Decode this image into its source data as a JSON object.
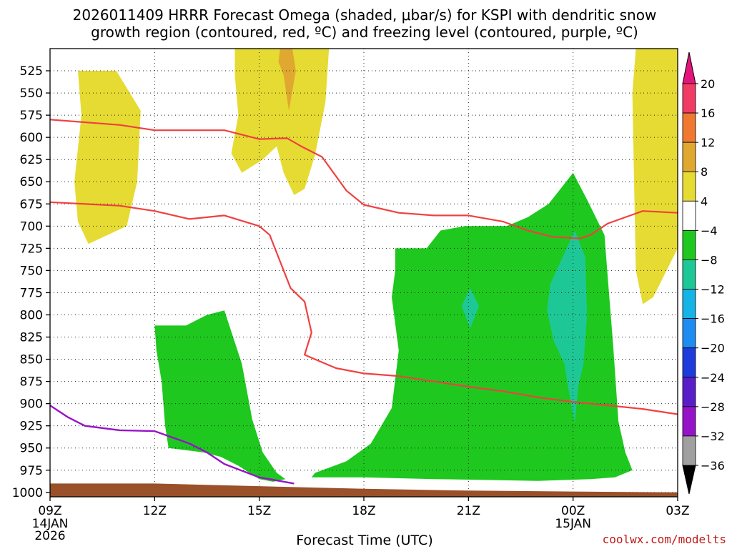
{
  "chart_data": {
    "type": "time-height cross section",
    "title_line1": "2026011409 HRRR Forecast Omega (shaded, μbar/s) for KSPI with dendritic snow",
    "title_line2": "growth region (contoured, red, ºC) and freezing level (contoured, purple, ºC)",
    "xlabel": "Forecast Time (UTC)",
    "credit": "coolwx.com/modelts",
    "x_range_hours": [
      0,
      18
    ],
    "y_range_mb": [
      1005,
      500
    ],
    "y_ticks": [
      525,
      550,
      575,
      600,
      625,
      650,
      675,
      700,
      725,
      750,
      775,
      800,
      825,
      850,
      875,
      900,
      925,
      950,
      975,
      1000
    ],
    "y_tick_labels": [
      "525",
      "550",
      "575",
      "600",
      "625",
      "650",
      "675",
      "700",
      "725",
      "750",
      "775",
      "800",
      "825",
      "850",
      "875",
      "900",
      "925",
      "950",
      "975",
      "1000"
    ],
    "x_ticks": [
      {
        "hour": 0,
        "label": "09Z",
        "sub": [
          "14JAN",
          "2026"
        ]
      },
      {
        "hour": 3,
        "label": "12Z",
        "sub": []
      },
      {
        "hour": 6,
        "label": "15Z",
        "sub": []
      },
      {
        "hour": 9,
        "label": "18Z",
        "sub": []
      },
      {
        "hour": 12,
        "label": "21Z",
        "sub": []
      },
      {
        "hour": 15,
        "label": "00Z",
        "sub": [
          "15JAN"
        ]
      },
      {
        "hour": 18,
        "label": "03Z",
        "sub": []
      }
    ],
    "colorbar": {
      "labels": [
        "20",
        "16",
        "12",
        "8",
        "4",
        "−4",
        "−8",
        "−12",
        "−16",
        "−20",
        "−24",
        "−28",
        "−32",
        "−36"
      ],
      "colors": [
        "#f03c64",
        "#f07830",
        "#e0a830",
        "#e6db32",
        "#ffffff",
        "#1ec81e",
        "#1ec896",
        "#14b4e6",
        "#1e8cf0",
        "#1e3cdc",
        "#5a1ec8",
        "#9614c8",
        "#a0a0a0"
      ],
      "top_arrow_color": "#e6147a",
      "bottom_arrow_color": "#000000"
    },
    "omega_regions": [
      {
        "name": "yellow-left",
        "color": "#e6db32",
        "points": [
          [
            0.8,
            525
          ],
          [
            1.9,
            525
          ],
          [
            2.6,
            570
          ],
          [
            2.5,
            650
          ],
          [
            2.2,
            700
          ],
          [
            1.1,
            720
          ],
          [
            0.8,
            695
          ],
          [
            0.7,
            650
          ],
          [
            0.9,
            575
          ]
        ]
      },
      {
        "name": "yellow-mid",
        "color": "#e6db32",
        "points": [
          [
            5.3,
            500
          ],
          [
            8.0,
            500
          ],
          [
            7.9,
            560
          ],
          [
            7.6,
            620
          ],
          [
            7.3,
            658
          ],
          [
            7.0,
            665
          ],
          [
            6.7,
            640
          ],
          [
            6.5,
            610
          ],
          [
            6.1,
            625
          ],
          [
            5.5,
            640
          ],
          [
            5.2,
            618
          ],
          [
            5.4,
            575
          ],
          [
            5.3,
            530
          ]
        ]
      },
      {
        "name": "yellow-right",
        "color": "#e6db32",
        "points": [
          [
            16.8,
            500
          ],
          [
            18,
            500
          ],
          [
            18,
            725
          ],
          [
            17.3,
            780
          ],
          [
            17.0,
            788
          ],
          [
            16.8,
            750
          ],
          [
            16.75,
            650
          ],
          [
            16.7,
            550
          ]
        ]
      },
      {
        "name": "orange-mid",
        "color": "#e0a830",
        "points": [
          [
            6.6,
            500
          ],
          [
            6.95,
            500
          ],
          [
            7.05,
            525
          ],
          [
            6.85,
            570
          ],
          [
            6.7,
            530
          ],
          [
            6.55,
            515
          ]
        ]
      },
      {
        "name": "green-left",
        "color": "#1ec81e",
        "points": [
          [
            3.0,
            812
          ],
          [
            3.9,
            812
          ],
          [
            4.5,
            800
          ],
          [
            5.0,
            795
          ],
          [
            5.5,
            855
          ],
          [
            5.8,
            918
          ],
          [
            6.1,
            955
          ],
          [
            6.5,
            978
          ],
          [
            6.75,
            985
          ],
          [
            6.4,
            988
          ],
          [
            6.0,
            985
          ],
          [
            5.4,
            970
          ],
          [
            4.9,
            960
          ],
          [
            4.4,
            955
          ],
          [
            3.4,
            950
          ],
          [
            3.3,
            925
          ],
          [
            3.2,
            875
          ],
          [
            3.05,
            840
          ]
        ]
      },
      {
        "name": "green-big",
        "color": "#1ec81e",
        "points": [
          [
            9.9,
            725
          ],
          [
            10.8,
            725
          ],
          [
            11.2,
            705
          ],
          [
            11.9,
            700
          ],
          [
            13.1,
            700
          ],
          [
            13.7,
            690
          ],
          [
            14.3,
            675
          ],
          [
            15.0,
            640
          ],
          [
            15.4,
            670
          ],
          [
            15.9,
            710
          ],
          [
            16.0,
            760
          ],
          [
            16.15,
            835
          ],
          [
            16.3,
            920
          ],
          [
            16.5,
            955
          ],
          [
            16.7,
            975
          ],
          [
            16.2,
            983
          ],
          [
            15.5,
            985
          ],
          [
            14.0,
            987
          ],
          [
            12.5,
            986
          ],
          [
            11.0,
            985
          ],
          [
            9.0,
            983
          ],
          [
            7.5,
            983
          ],
          [
            7.6,
            978
          ],
          [
            8.5,
            965
          ],
          [
            9.2,
            945
          ],
          [
            9.8,
            905
          ],
          [
            10.0,
            840
          ],
          [
            9.8,
            780
          ],
          [
            9.9,
            750
          ]
        ]
      },
      {
        "name": "teal-small",
        "color": "#1ec896",
        "points": [
          [
            12.05,
            770
          ],
          [
            12.3,
            790
          ],
          [
            12.05,
            815
          ],
          [
            11.8,
            790
          ]
        ]
      },
      {
        "name": "teal-big",
        "color": "#1ec896",
        "points": [
          [
            15.05,
            705
          ],
          [
            15.35,
            735
          ],
          [
            15.4,
            800
          ],
          [
            15.3,
            855
          ],
          [
            15.15,
            880
          ],
          [
            15.05,
            922
          ],
          [
            14.85,
            880
          ],
          [
            14.75,
            855
          ],
          [
            14.45,
            830
          ],
          [
            14.25,
            795
          ],
          [
            14.35,
            765
          ]
        ]
      }
    ],
    "red_contours": [
      {
        "name": "upper",
        "points": [
          [
            0,
            580
          ],
          [
            2.0,
            586
          ],
          [
            3.0,
            592
          ],
          [
            5.0,
            592
          ],
          [
            6.0,
            602
          ],
          [
            6.8,
            601
          ],
          [
            7.2,
            610
          ],
          [
            7.8,
            622
          ],
          [
            8.5,
            660
          ],
          [
            9.0,
            676
          ],
          [
            10.0,
            685
          ],
          [
            11.0,
            688
          ],
          [
            12.0,
            688
          ],
          [
            13.0,
            695
          ],
          [
            13.7,
            705
          ],
          [
            14.4,
            712
          ],
          [
            15.2,
            714
          ],
          [
            15.5,
            710
          ],
          [
            16.0,
            697
          ],
          [
            16.5,
            690
          ],
          [
            17.0,
            683
          ],
          [
            18.0,
            685
          ]
        ]
      },
      {
        "name": "lower",
        "points": [
          [
            0,
            673
          ],
          [
            1.0,
            675
          ],
          [
            2.0,
            677
          ],
          [
            3.0,
            683
          ],
          [
            4.0,
            692
          ],
          [
            5.0,
            688
          ],
          [
            6.0,
            700
          ],
          [
            6.3,
            710
          ],
          [
            6.6,
            740
          ],
          [
            6.9,
            770
          ],
          [
            7.3,
            785
          ],
          [
            7.5,
            820
          ],
          [
            7.3,
            845
          ],
          [
            7.6,
            850
          ],
          [
            8.2,
            860
          ],
          [
            9.0,
            866
          ],
          [
            10.0,
            869
          ],
          [
            11.0,
            875
          ],
          [
            12.0,
            881
          ],
          [
            13.0,
            886
          ],
          [
            14.0,
            893
          ],
          [
            15.0,
            898
          ],
          [
            16.0,
            902
          ],
          [
            17.0,
            906
          ],
          [
            18.0,
            912
          ]
        ]
      }
    ],
    "purple_contour": [
      [
        0,
        902
      ],
      [
        0.5,
        915
      ],
      [
        1.0,
        925
      ],
      [
        2.0,
        930
      ],
      [
        3.0,
        931
      ],
      [
        4.0,
        945
      ],
      [
        4.5,
        955
      ],
      [
        5.0,
        968
      ],
      [
        6.0,
        983
      ],
      [
        7.0,
        990
      ]
    ],
    "terrain_surface_mb": [
      [
        0,
        990
      ],
      [
        3.0,
        990
      ],
      [
        6.0,
        993
      ],
      [
        9.0,
        996
      ],
      [
        12.0,
        998
      ],
      [
        15.0,
        999
      ],
      [
        18.0,
        1000
      ]
    ]
  }
}
